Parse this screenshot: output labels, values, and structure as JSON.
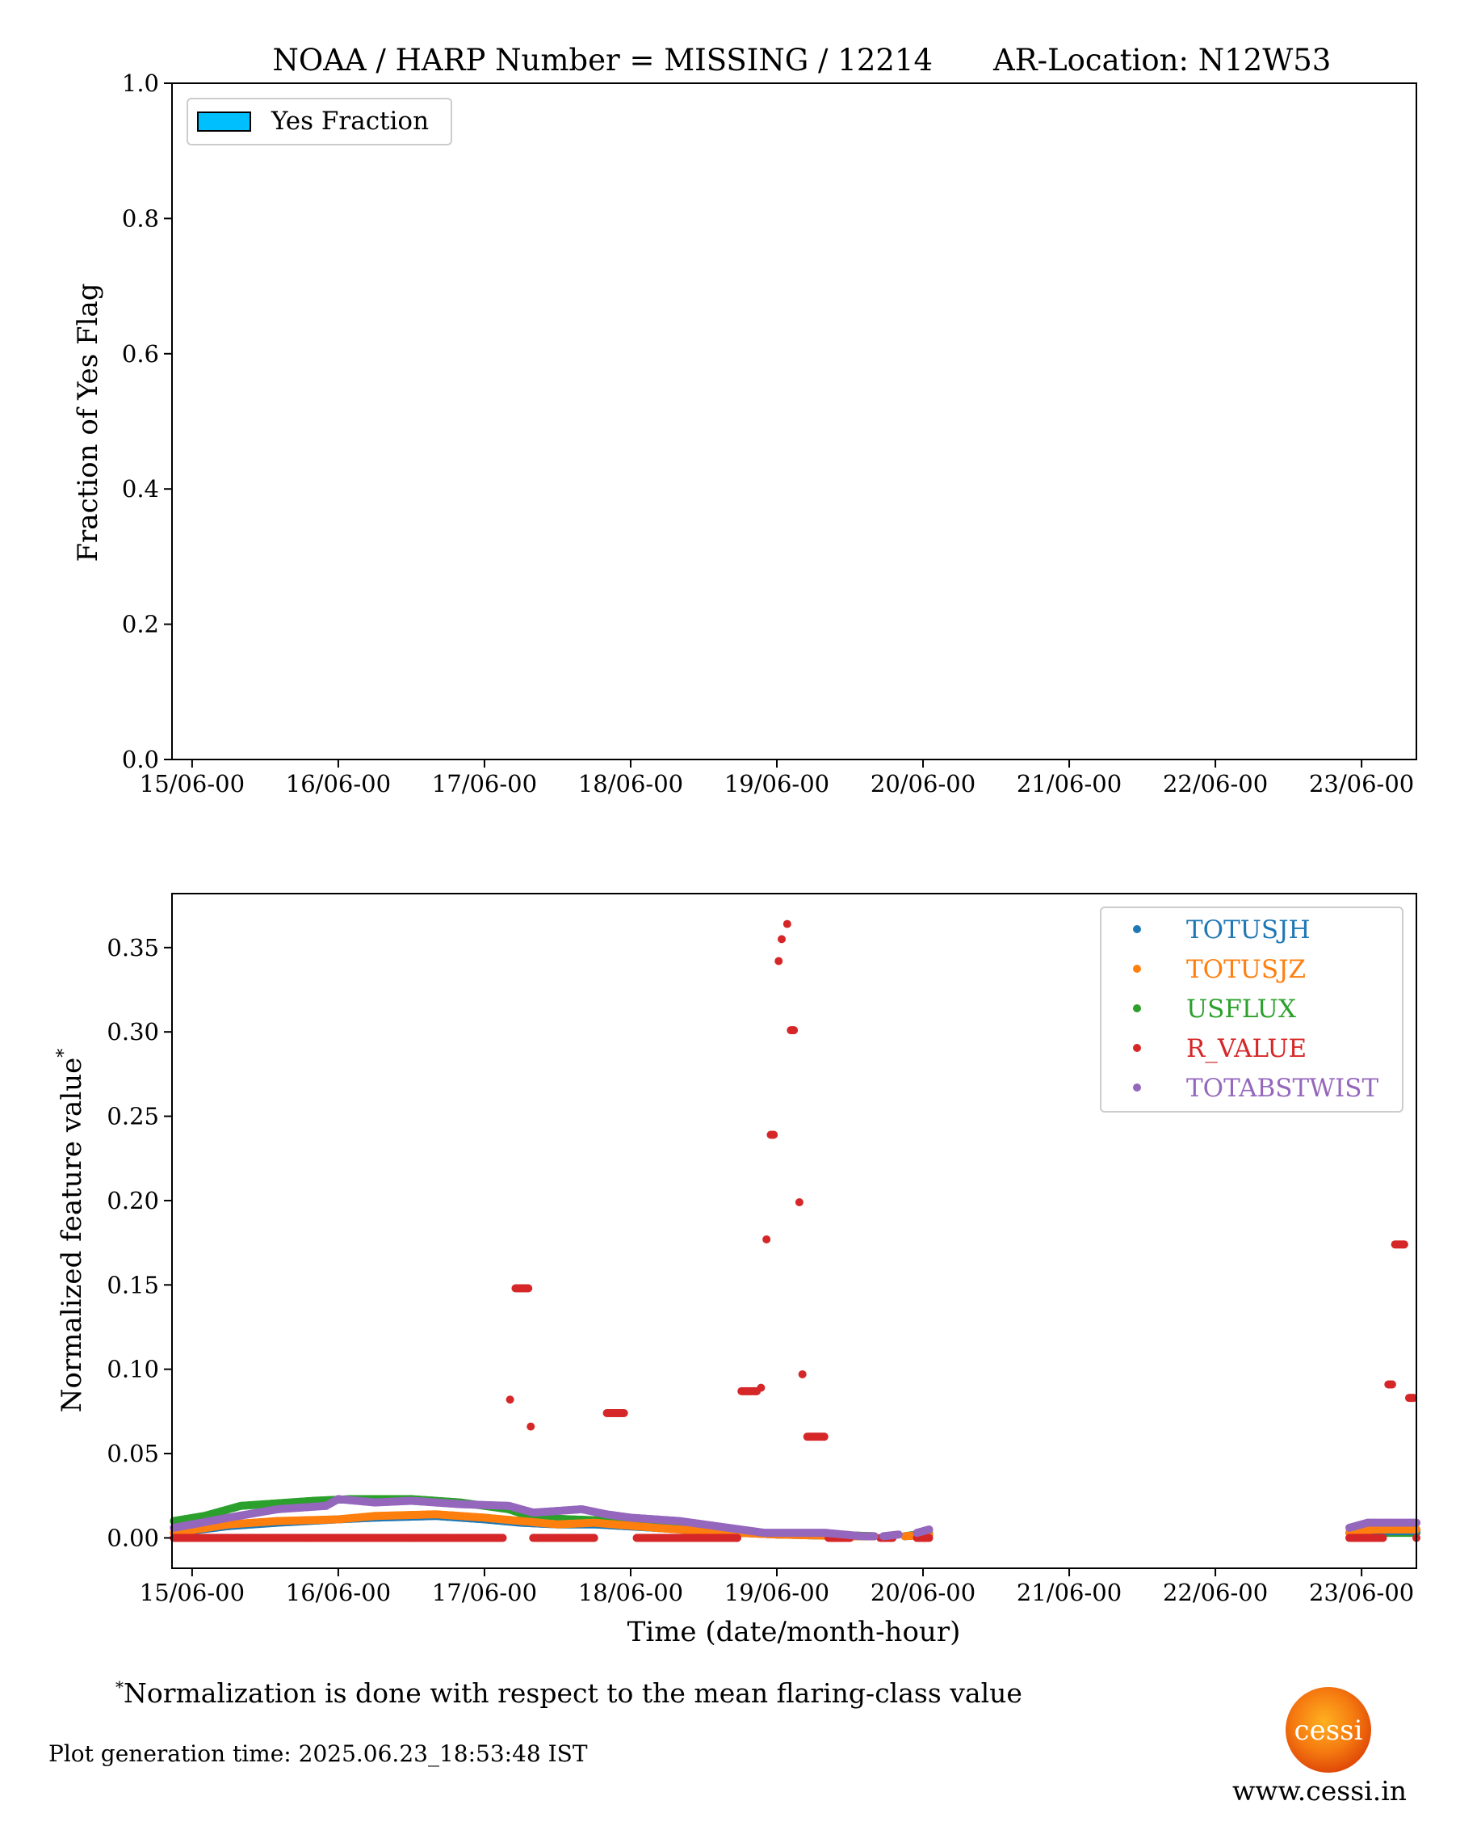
{
  "header": {
    "title": "NOAA / HARP Number = MISSING / 12214",
    "location": "AR-Location: N12W53"
  },
  "footnote": {
    "star": "*",
    "text": "Normalization is done with respect to the mean flaring-class value",
    "generation_time": "Plot generation time: 2025.06.23_18:53:48 IST",
    "logo_text": "cessi",
    "website": "www.cessi.in"
  },
  "chart_data": [
    {
      "type": "bar",
      "title": "NOAA / HARP Number = MISSING / 12214      AR-Location: N12W53",
      "ylabel": "Fraction of Yes Flag",
      "xlabel": "",
      "ylim": [
        0,
        1.0
      ],
      "xlim_hours": [
        -3.3,
        201
      ],
      "yticks": [
        "0.0",
        "0.2",
        "0.4",
        "0.6",
        "0.8",
        "1.0"
      ],
      "xticks": [
        "15/06-00",
        "16/06-00",
        "17/06-00",
        "18/06-00",
        "19/06-00",
        "20/06-00",
        "21/06-00",
        "22/06-00",
        "23/06-00"
      ],
      "legend": [
        {
          "label": "Yes Fraction",
          "color": "#00bfff"
        }
      ],
      "legend_position": "upper-left",
      "values": []
    },
    {
      "type": "scatter",
      "ylabel": "Normalized feature value",
      "ylabel_sup": "*",
      "xlabel": "Time (date/month-hour)",
      "x_unit": "hours since 15/06-00",
      "ylim": [
        -0.018,
        0.382
      ],
      "xlim_hours": [
        -3.3,
        201
      ],
      "yticks": [
        "0.00",
        "0.05",
        "0.10",
        "0.15",
        "0.20",
        "0.25",
        "0.30",
        "0.35"
      ],
      "xticks": [
        "15/06-00",
        "16/06-00",
        "17/06-00",
        "18/06-00",
        "19/06-00",
        "20/06-00",
        "21/06-00",
        "22/06-00",
        "23/06-00"
      ],
      "legend_position": "upper-right",
      "series": [
        {
          "name": "TOTUSJH",
          "color": "#1f77b4",
          "segments": [
            [
              [
                -3,
                0.003
              ],
              [
                6,
                0.007
              ],
              [
                14,
                0.009
              ],
              [
                24,
                0.011
              ],
              [
                30,
                0.012
              ],
              [
                40,
                0.013
              ],
              [
                48,
                0.011
              ],
              [
                54,
                0.009
              ],
              [
                60,
                0.008
              ],
              [
                66,
                0.008
              ],
              [
                76,
                0.006
              ],
              [
                84,
                0.004
              ],
              [
                96,
                0.002
              ],
              [
                108,
                0.001
              ],
              [
                112,
                0.001
              ]
            ],
            [
              [
                117,
                0.001
              ],
              [
                121,
                0.002
              ]
            ],
            [
              [
                190,
                0.003
              ],
              [
                194,
                0.004
              ],
              [
                201,
                0.004
              ]
            ]
          ]
        },
        {
          "name": "TOTUSJZ",
          "color": "#ff7f0e",
          "segments": [
            [
              [
                -3,
                0.003
              ],
              [
                6,
                0.008
              ],
              [
                14,
                0.01
              ],
              [
                24,
                0.011
              ],
              [
                30,
                0.013
              ],
              [
                40,
                0.014
              ],
              [
                48,
                0.012
              ],
              [
                54,
                0.01
              ],
              [
                60,
                0.008
              ],
              [
                66,
                0.009
              ],
              [
                76,
                0.006
              ],
              [
                84,
                0.004
              ],
              [
                96,
                0.002
              ],
              [
                108,
                0.001
              ],
              [
                112,
                0.001
              ]
            ],
            [
              [
                117,
                0.001
              ],
              [
                121,
                0.002
              ]
            ],
            [
              [
                190,
                0.003
              ],
              [
                194,
                0.005
              ],
              [
                201,
                0.005
              ]
            ]
          ]
        },
        {
          "name": "USFLUX",
          "color": "#2ca02c",
          "segments": [
            [
              [
                -3,
                0.01
              ],
              [
                2,
                0.013
              ],
              [
                8,
                0.019
              ],
              [
                20,
                0.022
              ],
              [
                26,
                0.023
              ],
              [
                36,
                0.023
              ],
              [
                44,
                0.021
              ],
              [
                52,
                0.017
              ],
              [
                56,
                0.012
              ],
              [
                62,
                0.011
              ],
              [
                70,
                0.01
              ],
              [
                80,
                0.007
              ],
              [
                88,
                0.005
              ],
              [
                96,
                0.002
              ],
              [
                104,
                0.002
              ],
              [
                112,
                0.001
              ]
            ],
            [
              [
                117,
                0.001
              ],
              [
                121,
                0.003
              ]
            ],
            [
              [
                190,
                0.003
              ],
              [
                201,
                0.003
              ]
            ]
          ]
        },
        {
          "name": "R_VALUE",
          "color": "#d62728",
          "segments": [
            [
              [
                -3,
                0
              ],
              [
                51,
                0
              ]
            ],
            [
              [
                52.2,
                0.082
              ]
            ],
            [
              [
                53.1,
                0.148
              ],
              [
                55.2,
                0.148
              ]
            ],
            [
              [
                55.6,
                0.066
              ]
            ],
            [
              [
                56,
                0
              ],
              [
                66,
                0
              ]
            ],
            [
              [
                68.1,
                0.074
              ],
              [
                70.9,
                0.074
              ]
            ],
            [
              [
                73,
                0
              ],
              [
                89.5,
                0
              ]
            ],
            [
              [
                90.2,
                0.087
              ],
              [
                92.7,
                0.087
              ]
            ],
            [
              [
                93.4,
                0.089
              ]
            ],
            [
              [
                94.3,
                0.177
              ]
            ],
            [
              [
                95.0,
                0.239
              ],
              [
                95.5,
                0.239
              ]
            ],
            [
              [
                96.3,
                0.342
              ]
            ],
            [
              [
                96.8,
                0.355
              ]
            ],
            [
              [
                97.7,
                0.364
              ]
            ],
            [
              [
                98.3,
                0.301
              ],
              [
                98.8,
                0.301
              ]
            ],
            [
              [
                99.7,
                0.199
              ]
            ],
            [
              [
                100.2,
                0.097
              ]
            ],
            [
              [
                101,
                0.06
              ],
              [
                103.8,
                0.06
              ]
            ],
            [
              [
                104.5,
                0
              ],
              [
                108,
                0
              ]
            ],
            [
              [
                113,
                0
              ],
              [
                115,
                0
              ]
            ],
            [
              [
                119,
                0
              ],
              [
                121,
                0
              ]
            ],
            [
              [
                190,
                0
              ],
              [
                195.5,
                0
              ]
            ],
            [
              [
                196.4,
                0.091
              ],
              [
                197,
                0.091
              ]
            ],
            [
              [
                197.5,
                0.174
              ],
              [
                199,
                0.174
              ]
            ],
            [
              [
                199.8,
                0.083
              ],
              [
                200.5,
                0.083
              ]
            ],
            [
              [
                201,
                0
              ]
            ]
          ]
        },
        {
          "name": "TOTABSTWIST",
          "color": "#9467bd",
          "segments": [
            [
              [
                -3,
                0.006
              ],
              [
                6,
                0.012
              ],
              [
                14,
                0.017
              ],
              [
                22,
                0.019
              ],
              [
                24,
                0.023
              ],
              [
                30,
                0.021
              ],
              [
                36,
                0.022
              ],
              [
                44,
                0.02
              ],
              [
                52,
                0.019
              ],
              [
                56,
                0.015
              ],
              [
                60,
                0.016
              ],
              [
                64,
                0.017
              ],
              [
                68,
                0.014
              ],
              [
                72,
                0.012
              ],
              [
                80,
                0.01
              ],
              [
                88,
                0.006
              ],
              [
                94,
                0.003
              ],
              [
                104,
                0.003
              ],
              [
                110,
                0.001
              ],
              [
                112,
                0.001
              ]
            ],
            [
              [
                113.5,
                0.001
              ],
              [
                116,
                0.002
              ]
            ],
            [
              [
                119,
                0.003
              ],
              [
                121,
                0.005
              ]
            ],
            [
              [
                190,
                0.006
              ],
              [
                193,
                0.009
              ],
              [
                201,
                0.009
              ]
            ]
          ]
        }
      ]
    }
  ]
}
